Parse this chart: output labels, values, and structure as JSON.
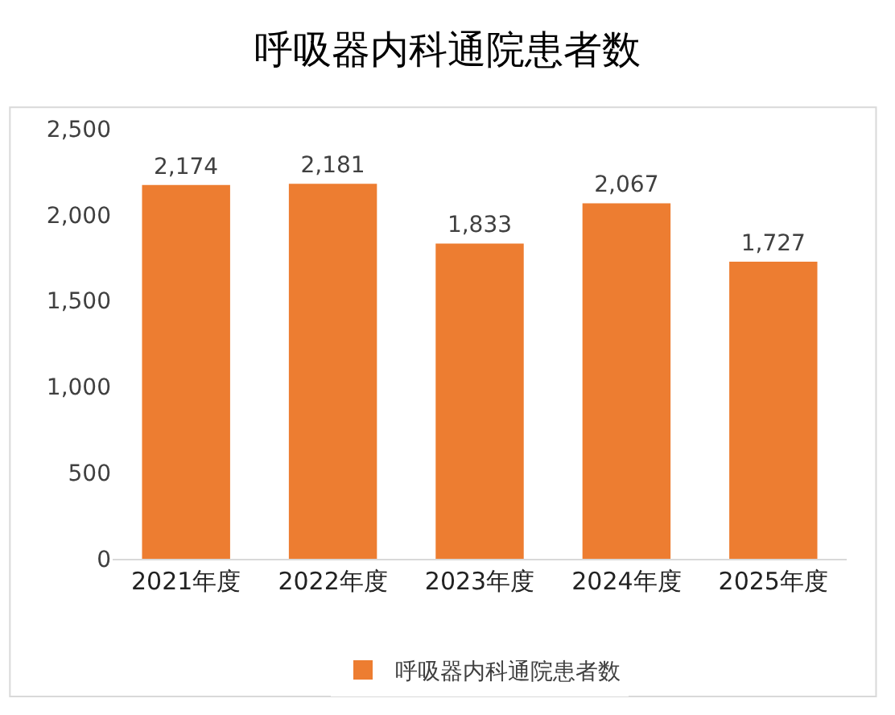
{
  "chart_data": {
    "type": "bar",
    "title": "呼吸器内科通院患者数",
    "categories": [
      "2021年度",
      "2022年度",
      "2023年度",
      "2024年度",
      "2025年度"
    ],
    "series": [
      {
        "name": "呼吸器内科通院患者数",
        "color": "#ed7d31",
        "values": [
          2174,
          2181,
          1833,
          2067,
          1727
        ]
      }
    ],
    "value_labels": [
      "2,174",
      "2,181",
      "1,833",
      "2,067",
      "1,727"
    ],
    "ylim": [
      0,
      2500
    ],
    "yticks": [
      {
        "value": 0,
        "label": "0"
      },
      {
        "value": 500,
        "label": "500"
      },
      {
        "value": 1000,
        "label": "1,000"
      },
      {
        "value": 1500,
        "label": "1,500"
      },
      {
        "value": 2000,
        "label": "2,000"
      },
      {
        "value": 2500,
        "label": "2,500"
      }
    ],
    "grid": false,
    "legend": "bottom"
  }
}
